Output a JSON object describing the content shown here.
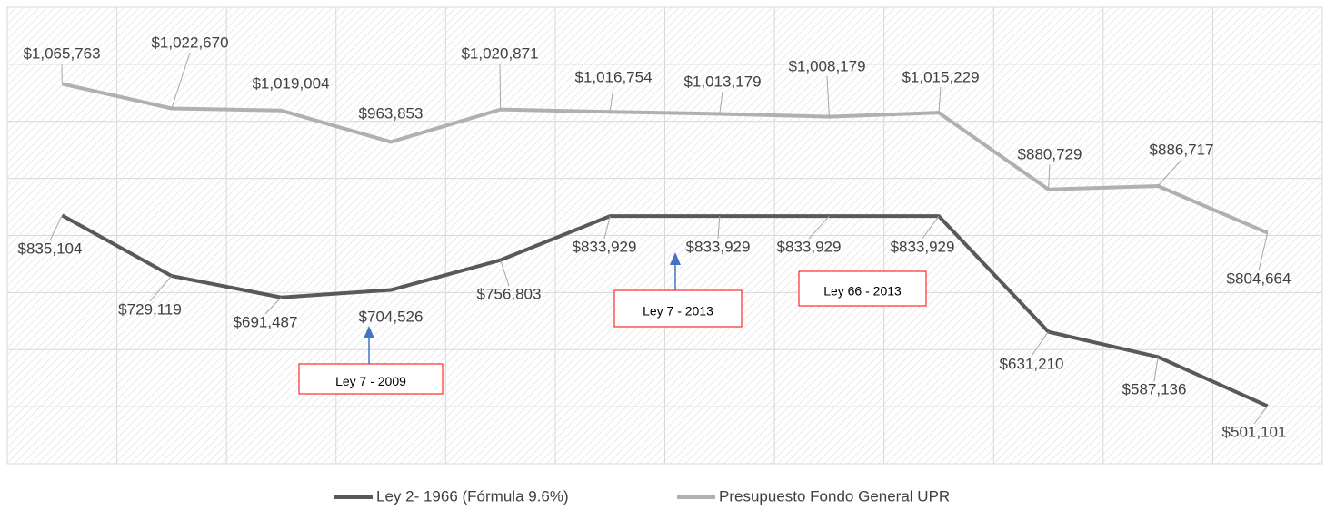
{
  "chart_data": {
    "type": "line",
    "categories": [
      null,
      null,
      null,
      null,
      null,
      null,
      null,
      null,
      null,
      null,
      null,
      null
    ],
    "series": [
      {
        "name": "Ley 2- 1966 (Fórmula 9.6%)",
        "color": "#595959",
        "values": [
          835104,
          729119,
          691487,
          704526,
          756803,
          833929,
          833929,
          833929,
          833929,
          631210,
          587136,
          501101
        ],
        "value_labels": [
          "$835,104",
          "$729,119",
          "$691,487",
          "$704,526",
          "$756,803",
          "$833,929",
          "$833,929",
          "$833,929",
          "$833,929",
          "$631,210",
          "$587,136",
          "$501,101"
        ]
      },
      {
        "name": "Presupuesto Fondo General UPR",
        "color": "#b0b0b0",
        "values": [
          1065763,
          1022670,
          1019004,
          963853,
          1020871,
          1016754,
          1013179,
          1008179,
          1015229,
          880729,
          886717,
          804664
        ],
        "value_labels": [
          "$1,065,763",
          "$1,022,670",
          "$1,019,004",
          "$963,853",
          "$1,020,871",
          "$1,016,754",
          "$1,013,179",
          "$1,008,179",
          "$1,015,229",
          "$880,729",
          "$886,717",
          "$804,664"
        ]
      }
    ],
    "annotations": [
      "Ley 7 - 2009",
      "Ley 7 - 2013",
      "Ley 66 - 2013"
    ],
    "ylim": [
      400000,
      1200000
    ],
    "yticks": [
      400000,
      500000,
      600000,
      700000,
      800000,
      900000,
      1000000,
      1100000,
      1200000
    ],
    "grid": true,
    "legend": "bottom"
  }
}
